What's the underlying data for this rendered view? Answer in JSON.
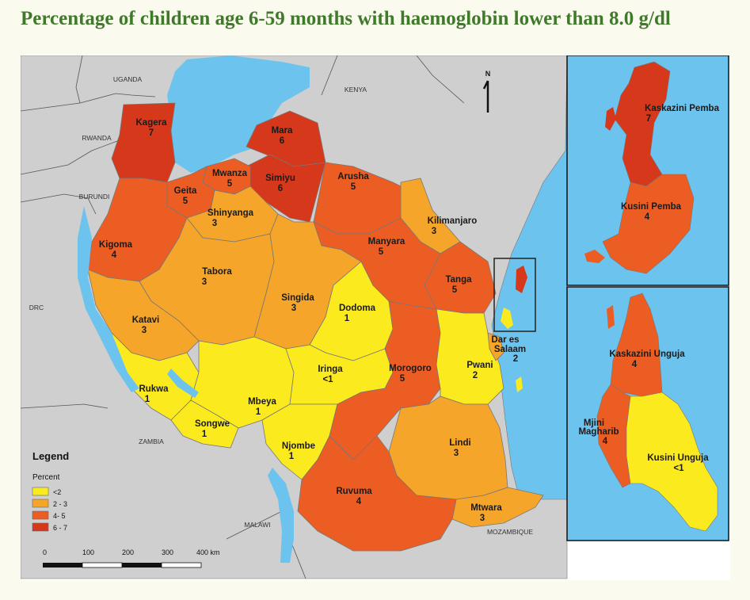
{
  "title": "Percentage of children age 6-59 months with haemoglobin lower than 8.0 g/dl",
  "colors": {
    "lt2": "#fbeb1e",
    "2to3": "#f5a52a",
    "4to5": "#ec5d24",
    "6to7": "#d6381c",
    "water": "#6cc3ee",
    "neighbour": "#cfcfcf",
    "background": "#fbfaee",
    "title": "#3f7a2a"
  },
  "regions": [
    {
      "name": "Kagera",
      "value": "7",
      "cls": "6-7"
    },
    {
      "name": "Mara",
      "value": "6",
      "cls": "6-7"
    },
    {
      "name": "Mwanza",
      "value": "5",
      "cls": "4-5"
    },
    {
      "name": "Simiyu",
      "value": "6",
      "cls": "6-7"
    },
    {
      "name": "Geita",
      "value": "5",
      "cls": "4-5"
    },
    {
      "name": "Arusha",
      "value": "5",
      "cls": "4-5"
    },
    {
      "name": "Shinyanga",
      "value": "3",
      "cls": "2-3"
    },
    {
      "name": "Kilimanjaro",
      "value": "3",
      "cls": "2-3"
    },
    {
      "name": "Kigoma",
      "value": "4",
      "cls": "4-5"
    },
    {
      "name": "Manyara",
      "value": "5",
      "cls": "4-5"
    },
    {
      "name": "Tabora",
      "value": "3",
      "cls": "2-3"
    },
    {
      "name": "Tanga",
      "value": "5",
      "cls": "4-5"
    },
    {
      "name": "Singida",
      "value": "3",
      "cls": "2-3"
    },
    {
      "name": "Dodoma",
      "value": "1",
      "cls": "<2"
    },
    {
      "name": "Katavi",
      "value": "3",
      "cls": "2-3"
    },
    {
      "name": "Dar es Salaam",
      "value": "2",
      "cls": "2-3"
    },
    {
      "name": "Pwani",
      "value": "2",
      "cls": "2-3"
    },
    {
      "name": "Iringa",
      "value": "<1",
      "cls": "<2"
    },
    {
      "name": "Morogoro",
      "value": "5",
      "cls": "4-5"
    },
    {
      "name": "Rukwa",
      "value": "1",
      "cls": "<2"
    },
    {
      "name": "Mbeya",
      "value": "1",
      "cls": "<2"
    },
    {
      "name": "Songwe",
      "value": "1",
      "cls": "<2"
    },
    {
      "name": "Njombe",
      "value": "1",
      "cls": "<2"
    },
    {
      "name": "Lindi",
      "value": "3",
      "cls": "2-3"
    },
    {
      "name": "Ruvuma",
      "value": "4",
      "cls": "4-5"
    },
    {
      "name": "Mtwara",
      "value": "3",
      "cls": "2-3"
    },
    {
      "name": "Kaskazini Pemba",
      "value": "7",
      "cls": "6-7"
    },
    {
      "name": "Kusini Pemba",
      "value": "4",
      "cls": "4-5"
    },
    {
      "name": "Kaskazini Unguja",
      "value": "4",
      "cls": "4-5"
    },
    {
      "name": "Mjini Magharibi",
      "value": "4",
      "cls": "4-5"
    },
    {
      "name": "Kusini Unguja",
      "value": "<1",
      "cls": "<2"
    }
  ],
  "region_labels": {
    "kagera": "Kagera",
    "mara": "Mara",
    "mwanza": "Mwanza",
    "simiyu": "Simiyu",
    "geita": "Geita",
    "arusha": "Arusha",
    "shinyanga": "Shinyanga",
    "kilimanjaro": "Kilimanjaro",
    "kigoma": "Kigoma",
    "manyara": "Manyara",
    "tabora": "Tabora",
    "tanga": "Tanga",
    "singida": "Singida",
    "dodoma": "Dodoma",
    "katavi": "Katavi",
    "dar1": "Dar es",
    "dar2": "Salaam",
    "pwani": "Pwani",
    "iringa": "Iringa",
    "morogoro": "Morogoro",
    "rukwa": "Rukwa",
    "mbeya": "Mbeya",
    "songwe": "Songwe",
    "njombe": "Njombe",
    "lindi": "Lindi",
    "ruvuma": "Ruvuma",
    "mtwara": "Mtwara",
    "kaskazini_pemba": "Kaskazini  Pemba",
    "kusini_pemba": "Kusini Pemba",
    "kaskazini_unguja": "Kaskazini Unguja",
    "mjini1": "Mjini",
    "mjini2": "Magharib",
    "kusini_unguja": "Kusini Unguja"
  },
  "region_values": {
    "kagera": "7",
    "mara": "6",
    "mwanza": "5",
    "simiyu": "6",
    "geita": "5",
    "arusha": "5",
    "shinyanga": "3",
    "kilimanjaro": "3",
    "kigoma": "4",
    "manyara": "5",
    "tabora": "3",
    "tanga": "5",
    "singida": "3",
    "dodoma": "1",
    "katavi": "3",
    "dar": "2",
    "pwani": "2",
    "iringa": "<1",
    "morogoro": "5",
    "rukwa": "1",
    "mbeya": "1",
    "songwe": "1",
    "njombe": "1",
    "lindi": "3",
    "ruvuma": "4",
    "mtwara": "3",
    "kaskazini_pemba": "7",
    "kusini_pemba": "4",
    "kaskazini_unguja": "4",
    "mjini": "4",
    "kusini_unguja": "<1"
  },
  "countries": {
    "uganda": "UGANDA",
    "kenya": "KENYA",
    "rwanda": "RWANDA",
    "burundi": "BURUNDI",
    "drc": "DRC",
    "zambia": "ZAMBIA",
    "malawi": "MALAWI",
    "mozambique": "MOZAMBIQUE"
  },
  "north": "N",
  "legend": {
    "title": "Legend",
    "subtitle": "Percent",
    "items": [
      {
        "label": "<2",
        "color": "#fbeb1e"
      },
      {
        "label": "2 - 3",
        "color": "#f5a52a"
      },
      {
        "label": "4- 5",
        "color": "#ec5d24"
      },
      {
        "label": "6 - 7",
        "color": "#d6381c"
      }
    ]
  },
  "scale_bar": {
    "ticks": [
      "0",
      "100",
      "200",
      "300",
      "400 km"
    ]
  }
}
